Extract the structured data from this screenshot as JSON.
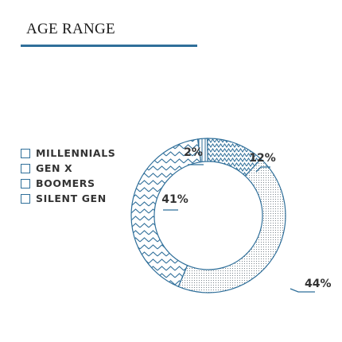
{
  "chart_data": {
    "type": "pie",
    "title": "AGE RANGE",
    "categories": [
      "MILLENNIALS",
      "GEN X",
      "BOOMERS",
      "SILENT GEN"
    ],
    "values": [
      41,
      44,
      12,
      2
    ],
    "value_labels": [
      "41%",
      "44%",
      "12%",
      "2%"
    ],
    "donut": true,
    "legend_position": "left"
  },
  "colors": {
    "accent": "#2f6f9a",
    "text": "#333333"
  }
}
